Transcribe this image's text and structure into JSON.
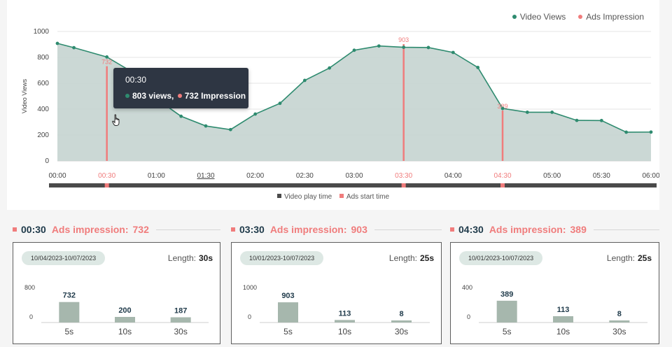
{
  "colors": {
    "line": "#2e8b6f",
    "fill": "#c5d4d0",
    "ads": "#f07c7c",
    "bar": "#a6b7ad",
    "playbar": "#4a4a4a"
  },
  "legend": {
    "views": "Video Views",
    "ads": "Ads Impression"
  },
  "tooltip": {
    "time": "00:30",
    "views": "803 views,",
    "impression": "732 Impression"
  },
  "bottom_legend": {
    "play": "Video play time",
    "ads": "Ads start time"
  },
  "chart_data": [
    {
      "type": "area",
      "ylabel": "Video Views",
      "xlabel": "",
      "ylim": [
        0,
        1000
      ],
      "yticks": [
        0,
        200,
        400,
        600,
        800,
        1000
      ],
      "xlim_seconds": [
        0,
        360
      ],
      "xtick_labels": [
        "00:00",
        "00:30",
        "01:00",
        "01:30",
        "02:00",
        "02:30",
        "03:00",
        "03:30",
        "04:00",
        "04:30",
        "05:00",
        "05:30",
        "06:00"
      ],
      "highlighted_ticks": [
        "00:30",
        "03:30",
        "04:30"
      ],
      "underlined_tick": "01:30",
      "grid": true,
      "legend_position": "top-right",
      "series": [
        {
          "name": "Video Views",
          "x": [
            "00:00",
            "00:10",
            "00:30",
            "00:45",
            "01:00",
            "01:15",
            "01:30",
            "01:45",
            "02:00",
            "02:15",
            "02:30",
            "02:45",
            "03:00",
            "03:15",
            "03:30",
            "03:45",
            "04:00",
            "04:15",
            "04:30",
            "04:45",
            "05:00",
            "05:15",
            "05:30",
            "05:45",
            "06:00"
          ],
          "y": [
            908,
            875,
            803,
            690,
            480,
            345,
            270,
            242,
            362,
            445,
            622,
            718,
            855,
            888,
            878,
            876,
            838,
            722,
            405,
            376,
            376,
            313,
            312,
            222,
            223
          ]
        }
      ],
      "ads_impressions": [
        {
          "time": "00:30",
          "value": 732,
          "label": "732"
        },
        {
          "time": "03:30",
          "value": 903,
          "label": "903"
        },
        {
          "time": "04:30",
          "value": 389,
          "label": "389"
        }
      ]
    },
    {
      "type": "bar",
      "categories": [
        "5s",
        "10s",
        "30s"
      ],
      "values": [
        732,
        200,
        187
      ],
      "yticks": [
        0,
        800
      ],
      "ylim": [
        0,
        800
      ]
    },
    {
      "type": "bar",
      "categories": [
        "5s",
        "10s",
        "30s"
      ],
      "values": [
        903,
        113,
        8
      ],
      "yticks": [
        0,
        1000
      ],
      "ylim": [
        0,
        1000
      ]
    },
    {
      "type": "bar",
      "categories": [
        "5s",
        "10s",
        "30s"
      ],
      "values": [
        389,
        113,
        8
      ],
      "yticks": [
        0,
        400
      ],
      "ylim": [
        0,
        400
      ]
    }
  ],
  "sections": [
    {
      "time": "00:30",
      "label": "Ads impression:",
      "value": "732",
      "date": "10/04/2023-10/07/2023",
      "length_label": "Length:",
      "length": "30s"
    },
    {
      "time": "03:30",
      "label": "Ads impression:",
      "value": "903",
      "date": "10/01/2023-10/07/2023",
      "length_label": "Length:",
      "length": "25s"
    },
    {
      "time": "04:30",
      "label": "Ads impression:",
      "value": "389",
      "date": "10/01/2023-10/07/2023",
      "length_label": "Length:",
      "length": "25s"
    }
  ]
}
